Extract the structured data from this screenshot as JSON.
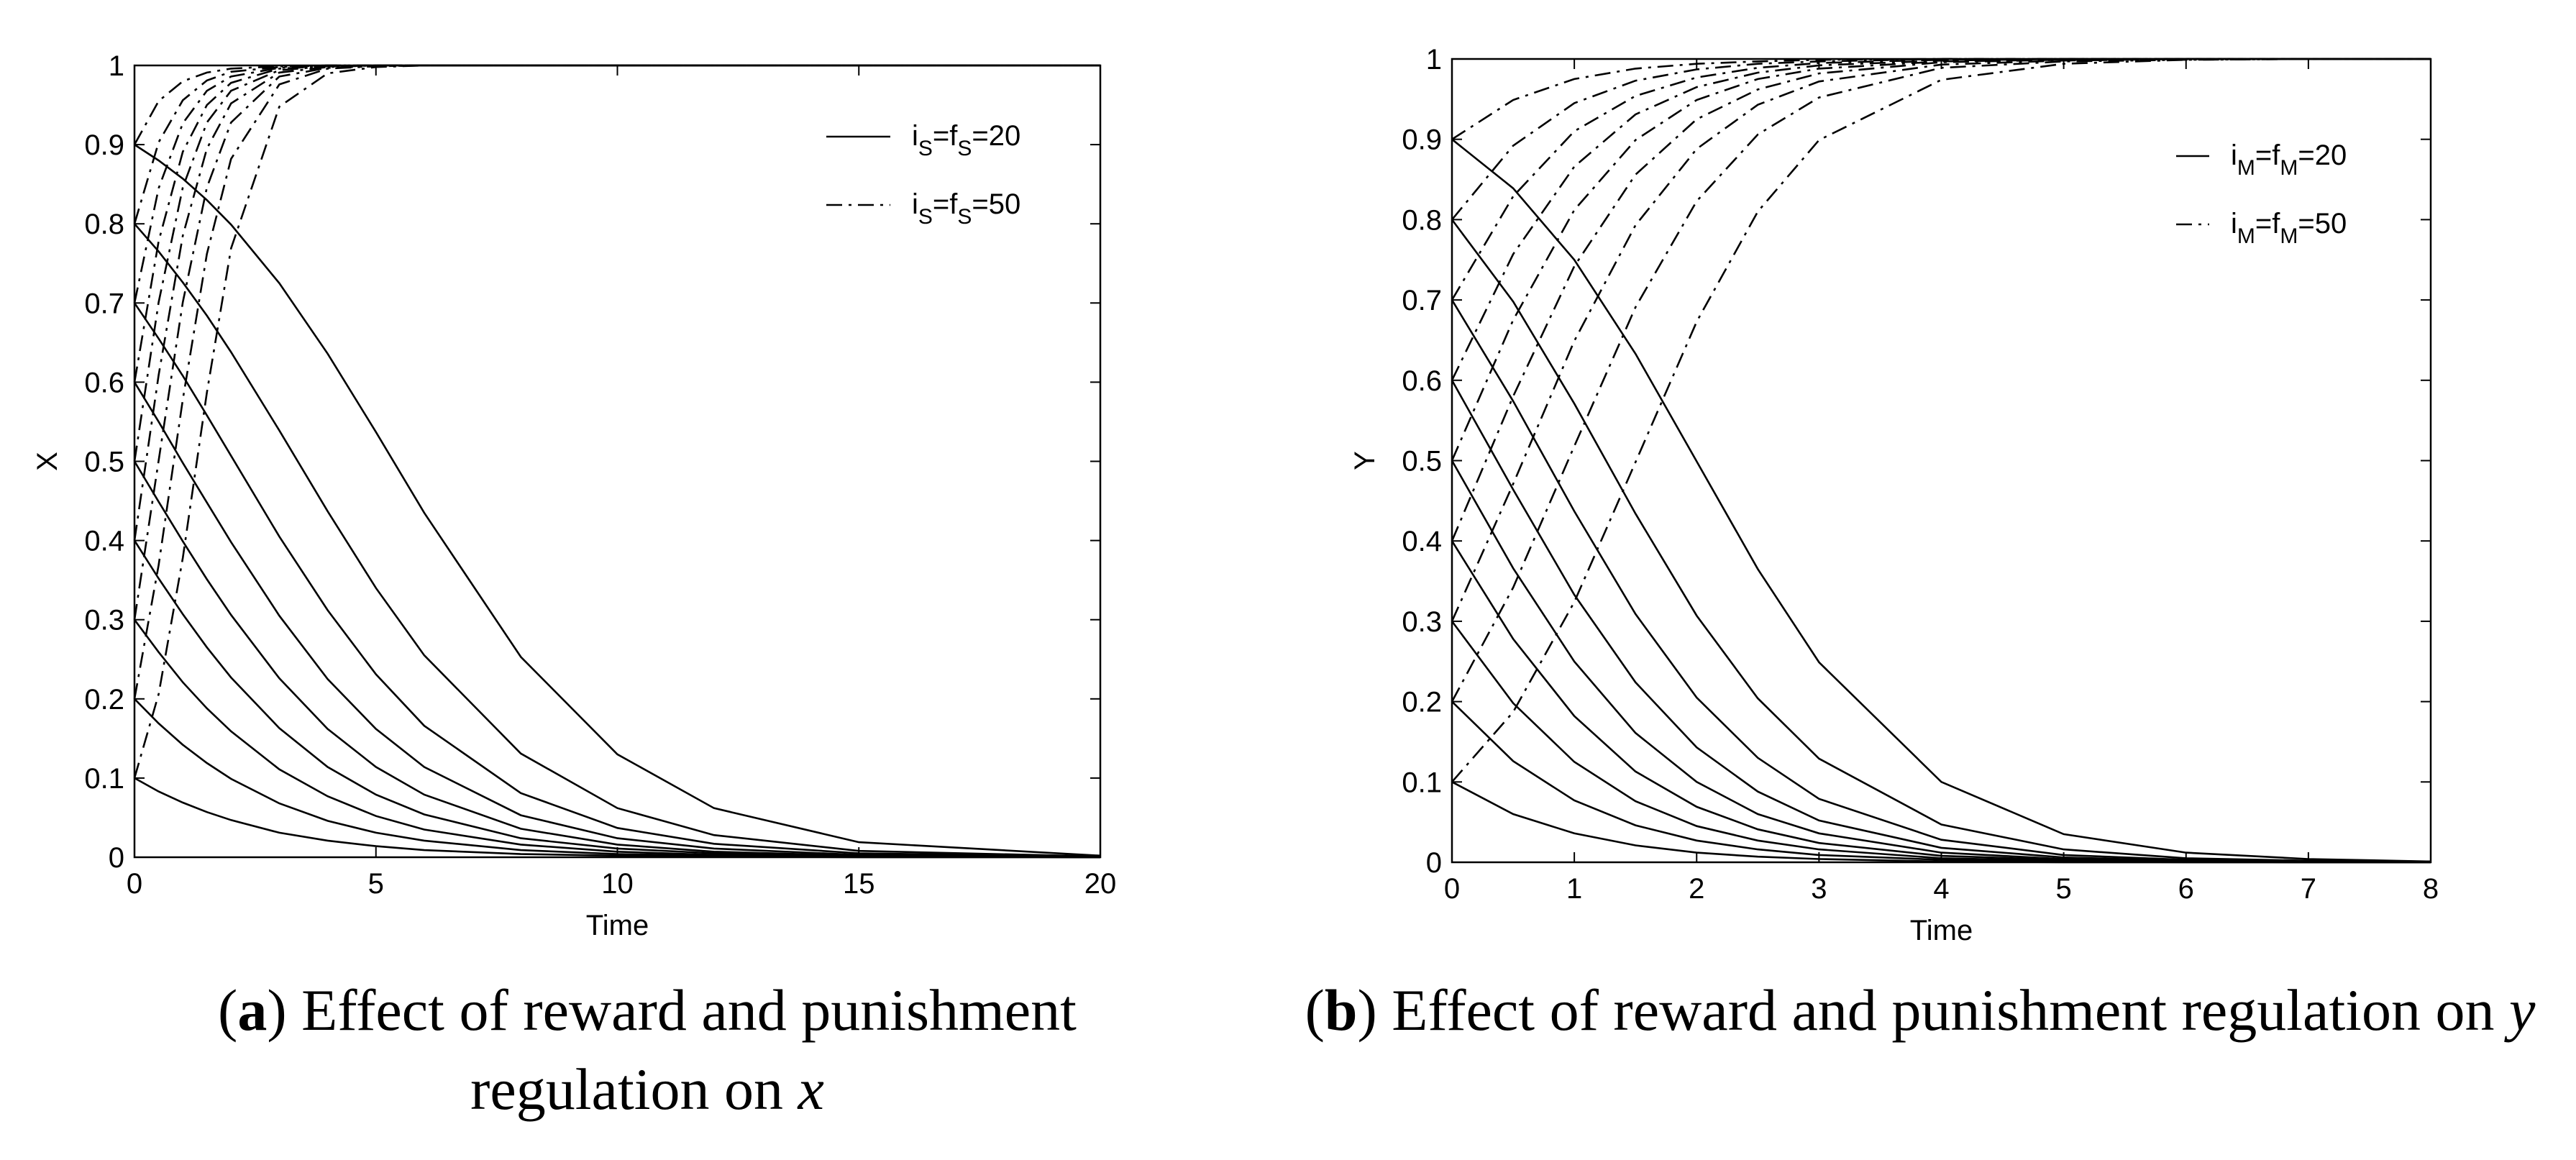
{
  "chart_data": [
    {
      "type": "line",
      "xlabel": "Time",
      "ylabel": "X",
      "xlim": [
        0,
        20
      ],
      "ylim": [
        0,
        1
      ],
      "xticks": [
        0,
        5,
        10,
        15,
        20
      ],
      "yticks": [
        0,
        0.1,
        0.2,
        0.3,
        0.4,
        0.5,
        0.6,
        0.7,
        0.8,
        0.9,
        1
      ],
      "legend": "upper right",
      "caption": [
        "(",
        "a",
        ") Effect of reward and punishment regulation on ",
        "x"
      ],
      "x": [
        0,
        0.5,
        1,
        1.5,
        2,
        3,
        4,
        5,
        6,
        8,
        10,
        12,
        15,
        20
      ],
      "series": [
        {
          "name": [
            "i",
            "S",
            "=f",
            "S",
            "=20"
          ],
          "color": "#000000",
          "dash": "solid",
          "values": [
            0.9,
            0.88,
            0.857,
            0.83,
            0.799,
            0.725,
            0.636,
            0.537,
            0.435,
            0.253,
            0.13,
            0.062,
            0.019,
            0.002
          ]
        },
        {
          "color": "#000000",
          "dash": "solid",
          "values": [
            0.8,
            0.765,
            0.726,
            0.684,
            0.638,
            0.539,
            0.437,
            0.34,
            0.255,
            0.131,
            0.062,
            0.028,
            0.008,
            0.001
          ]
        },
        {
          "color": "#000000",
          "dash": "solid",
          "values": [
            0.7,
            0.655,
            0.608,
            0.558,
            0.507,
            0.405,
            0.312,
            0.231,
            0.166,
            0.081,
            0.037,
            0.017,
            0.005,
            0.001
          ]
        },
        {
          "color": "#000000",
          "dash": "solid",
          "values": [
            0.6,
            0.55,
            0.498,
            0.448,
            0.398,
            0.305,
            0.225,
            0.162,
            0.114,
            0.053,
            0.024,
            0.011,
            0.003,
            0
          ]
        },
        {
          "color": "#000000",
          "dash": "solid",
          "values": [
            0.5,
            0.449,
            0.399,
            0.351,
            0.306,
            0.226,
            0.162,
            0.114,
            0.079,
            0.036,
            0.016,
            0.007,
            0.002,
            0
          ]
        },
        {
          "color": "#000000",
          "dash": "solid",
          "values": [
            0.4,
            0.352,
            0.307,
            0.265,
            0.227,
            0.163,
            0.114,
            0.079,
            0.054,
            0.024,
            0.011,
            0.005,
            0.001,
            0
          ]
        },
        {
          "color": "#000000",
          "dash": "solid",
          "values": [
            0.3,
            0.259,
            0.221,
            0.188,
            0.159,
            0.111,
            0.077,
            0.052,
            0.035,
            0.016,
            0.007,
            0.003,
            0.001,
            0
          ]
        },
        {
          "color": "#000000",
          "dash": "solid",
          "values": [
            0.2,
            0.169,
            0.142,
            0.119,
            0.099,
            0.068,
            0.046,
            0.031,
            0.021,
            0.009,
            0.004,
            0.002,
            0.001,
            0
          ]
        },
        {
          "color": "#000000",
          "dash": "solid",
          "values": [
            0.1,
            0.083,
            0.069,
            0.057,
            0.047,
            0.031,
            0.021,
            0.014,
            0.009,
            0.004,
            0.002,
            0.001,
            0,
            0
          ]
        },
        {
          "name": [
            "i",
            "S",
            "=f",
            "S",
            "=50"
          ],
          "color": "#000000",
          "dash": "dashdot",
          "values": [
            0.9,
            0.955,
            0.98,
            0.991,
            0.996,
            0.999,
            1,
            1,
            1,
            1,
            1,
            1,
            1,
            1
          ]
        },
        {
          "color": "#000000",
          "dash": "dashdot",
          "values": [
            0.8,
            0.903,
            0.956,
            0.981,
            0.992,
            0.998,
            1,
            1,
            1,
            1,
            1,
            1,
            1,
            1
          ]
        },
        {
          "color": "#000000",
          "dash": "dashdot",
          "values": [
            0.7,
            0.845,
            0.927,
            0.968,
            0.986,
            0.997,
            0.999,
            1,
            1,
            1,
            1,
            1,
            1,
            1
          ]
        },
        {
          "color": "#000000",
          "dash": "dashdot",
          "values": [
            0.6,
            0.778,
            0.891,
            0.95,
            0.978,
            0.996,
            0.999,
            1,
            1,
            1,
            1,
            1,
            1,
            1
          ]
        },
        {
          "color": "#000000",
          "dash": "dashdot",
          "values": [
            0.5,
            0.701,
            0.846,
            0.928,
            0.968,
            0.994,
            0.999,
            1,
            1,
            1,
            1,
            1,
            1,
            1
          ]
        },
        {
          "color": "#000000",
          "dash": "dashdot",
          "values": [
            0.4,
            0.609,
            0.785,
            0.895,
            0.952,
            0.991,
            0.998,
            1,
            1,
            1,
            1,
            1,
            1,
            1
          ]
        },
        {
          "color": "#000000",
          "dash": "dashdot",
          "values": [
            0.3,
            0.501,
            0.701,
            0.846,
            0.928,
            0.986,
            0.997,
            0.999,
            1,
            1,
            1,
            1,
            1,
            1
          ]
        },
        {
          "color": "#000000",
          "dash": "dashdot",
          "values": [
            0.2,
            0.369,
            0.578,
            0.762,
            0.882,
            0.976,
            0.996,
            0.999,
            1,
            1,
            1,
            1,
            1,
            1
          ]
        },
        {
          "color": "#000000",
          "dash": "dashdot",
          "values": [
            0.1,
            0.206,
            0.378,
            0.587,
            0.769,
            0.948,
            0.99,
            0.998,
            1,
            1,
            1,
            1,
            1,
            1
          ]
        }
      ]
    },
    {
      "type": "line",
      "xlabel": "Time",
      "ylabel": "Y",
      "xlim": [
        0,
        8
      ],
      "ylim": [
        0,
        1
      ],
      "xticks": [
        0,
        1,
        2,
        3,
        4,
        5,
        6,
        7,
        8
      ],
      "yticks": [
        0,
        0.1,
        0.2,
        0.3,
        0.4,
        0.5,
        0.6,
        0.7,
        0.8,
        0.9,
        1
      ],
      "legend": "upper right",
      "caption": [
        "(",
        "b",
        ") Effect of reward and punishment regulation on ",
        "y"
      ],
      "x": [
        0,
        0.5,
        1,
        1.5,
        2,
        2.5,
        3,
        4,
        5,
        6,
        7,
        8
      ],
      "series": [
        {
          "name": [
            "i",
            "M",
            "=f",
            "M",
            "=20"
          ],
          "color": "#000000",
          "dash": "solid",
          "values": [
            0.9,
            0.839,
            0.75,
            0.633,
            0.499,
            0.365,
            0.249,
            0.1,
            0.035,
            0.012,
            0.004,
            0.001
          ]
        },
        {
          "color": "#000000",
          "dash": "solid",
          "values": [
            0.8,
            0.698,
            0.571,
            0.434,
            0.307,
            0.204,
            0.129,
            0.047,
            0.016,
            0.005,
            0.002,
            0.001
          ]
        },
        {
          "color": "#000000",
          "dash": "solid",
          "values": [
            0.7,
            0.574,
            0.437,
            0.309,
            0.205,
            0.13,
            0.079,
            0.028,
            0.009,
            0.003,
            0.001,
            0
          ]
        },
        {
          "color": "#000000",
          "dash": "solid",
          "values": [
            0.6,
            0.464,
            0.333,
            0.224,
            0.143,
            0.088,
            0.052,
            0.018,
            0.006,
            0.002,
            0.001,
            0
          ]
        },
        {
          "color": "#000000",
          "dash": "solid",
          "values": [
            0.5,
            0.366,
            0.25,
            0.161,
            0.1,
            0.06,
            0.036,
            0.012,
            0.004,
            0.001,
            0,
            0
          ]
        },
        {
          "color": "#000000",
          "dash": "solid",
          "values": [
            0.4,
            0.278,
            0.182,
            0.113,
            0.069,
            0.041,
            0.024,
            0.008,
            0.003,
            0.001,
            0,
            0
          ]
        },
        {
          "color": "#000000",
          "dash": "solid",
          "values": [
            0.3,
            0.198,
            0.125,
            0.076,
            0.045,
            0.027,
            0.016,
            0.005,
            0.002,
            0.001,
            0,
            0
          ]
        },
        {
          "color": "#000000",
          "dash": "solid",
          "values": [
            0.2,
            0.126,
            0.077,
            0.046,
            0.027,
            0.016,
            0.009,
            0.003,
            0.001,
            0,
            0,
            0
          ]
        },
        {
          "color": "#000000",
          "dash": "solid",
          "values": [
            0.1,
            0.06,
            0.036,
            0.021,
            0.012,
            0.007,
            0.004,
            0.001,
            0,
            0,
            0,
            0
          ]
        },
        {
          "name": [
            "i",
            "M",
            "=f",
            "M",
            "=50"
          ],
          "color": "#000000",
          "dash": "dashdot",
          "values": [
            0.9,
            0.949,
            0.975,
            0.988,
            0.994,
            0.997,
            0.999,
            1,
            1,
            1,
            1,
            1
          ]
        },
        {
          "color": "#000000",
          "dash": "dashdot",
          "values": [
            0.8,
            0.892,
            0.945,
            0.973,
            0.987,
            0.994,
            0.997,
            1,
            1,
            1,
            1,
            1
          ]
        },
        {
          "color": "#000000",
          "dash": "dashdot",
          "values": [
            0.7,
            0.829,
            0.91,
            0.954,
            0.977,
            0.989,
            0.995,
            0.999,
            1,
            1,
            1,
            1
          ]
        },
        {
          "color": "#000000",
          "dash": "dashdot",
          "values": [
            0.6,
            0.757,
            0.866,
            0.931,
            0.965,
            0.983,
            0.992,
            0.998,
            1,
            1,
            1,
            1
          ]
        },
        {
          "color": "#000000",
          "dash": "dashdot",
          "values": [
            0.5,
            0.675,
            0.812,
            0.899,
            0.949,
            0.975,
            0.988,
            0.997,
            0.999,
            1,
            1,
            1
          ]
        },
        {
          "color": "#000000",
          "dash": "dashdot",
          "values": [
            0.4,
            0.58,
            0.742,
            0.856,
            0.925,
            0.962,
            0.982,
            0.996,
            0.999,
            1,
            1,
            1
          ]
        },
        {
          "color": "#000000",
          "dash": "dashdot",
          "values": [
            0.3,
            0.471,
            0.649,
            0.793,
            0.888,
            0.943,
            0.972,
            0.993,
            0.998,
            1,
            1,
            1
          ]
        },
        {
          "color": "#000000",
          "dash": "dashdot",
          "values": [
            0.2,
            0.342,
            0.518,
            0.691,
            0.823,
            0.906,
            0.952,
            0.989,
            0.997,
            0.999,
            1,
            1
          ]
        },
        {
          "color": "#000000",
          "dash": "dashdot",
          "values": [
            0.1,
            0.187,
            0.324,
            0.498,
            0.673,
            0.81,
            0.899,
            0.974,
            0.994,
            0.999,
            1,
            1
          ]
        }
      ]
    }
  ]
}
